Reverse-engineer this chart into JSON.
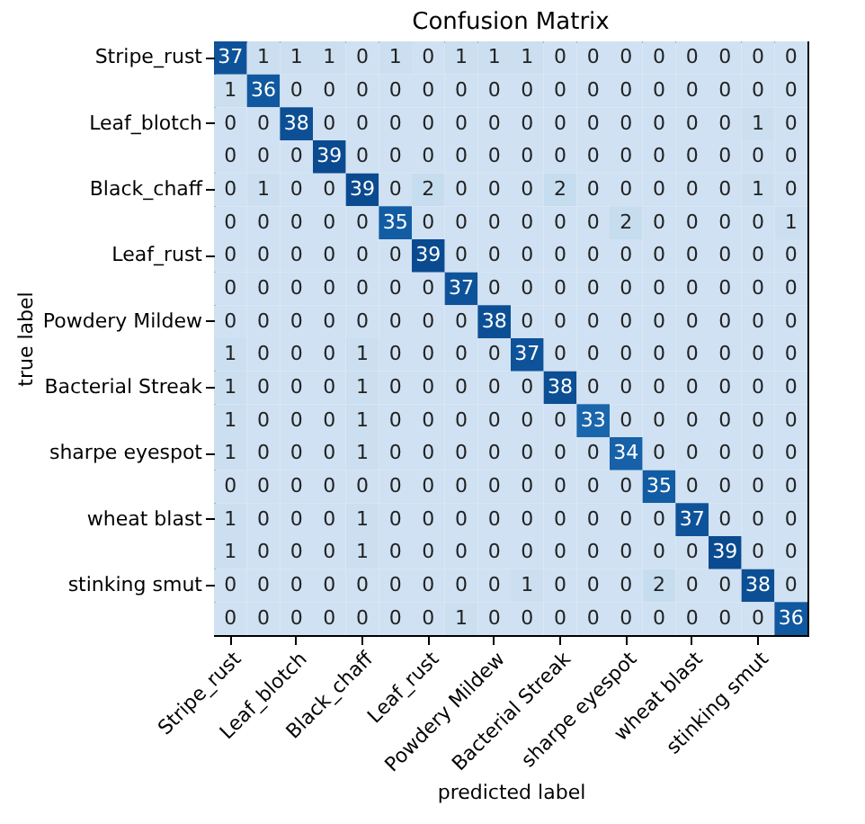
{
  "chart_data": {
    "type": "heatmap",
    "title": "Confusion Matrix",
    "xlabel": "predicted label",
    "ylabel": "true label",
    "categories": [
      "Stripe_rust",
      null,
      "Leaf_blotch",
      null,
      "Black_chaff",
      null,
      "Leaf_rust",
      null,
      "Powdery Mildew",
      null,
      "Bacterial Streak",
      null,
      "sharpe eyespot",
      null,
      "wheat blast",
      null,
      "stinking smut",
      null
    ],
    "y_categories": [
      "Stripe_rust",
      null,
      "Leaf_blotch",
      null,
      "Black_chaff",
      null,
      "Leaf_rust",
      null,
      "Powdery Mildew",
      null,
      "Bacterial Streak",
      null,
      "sharpe eyespot",
      null,
      "wheat blast",
      null,
      "stinking smut",
      null
    ],
    "cells": [
      [
        37,
        1,
        1,
        1,
        0,
        1,
        0,
        1,
        1,
        1,
        0,
        0,
        0,
        0,
        0,
        0,
        0,
        0
      ],
      [
        1,
        36,
        0,
        0,
        0,
        0,
        0,
        0,
        0,
        0,
        0,
        0,
        0,
        0,
        0,
        0,
        0,
        0
      ],
      [
        0,
        0,
        38,
        0,
        0,
        0,
        0,
        0,
        0,
        0,
        0,
        0,
        0,
        0,
        0,
        0,
        1,
        0
      ],
      [
        0,
        0,
        0,
        39,
        0,
        0,
        0,
        0,
        0,
        0,
        0,
        0,
        0,
        0,
        0,
        0,
        0,
        0
      ],
      [
        0,
        1,
        0,
        0,
        39,
        0,
        2,
        0,
        0,
        0,
        2,
        0,
        0,
        0,
        0,
        0,
        1,
        0
      ],
      [
        0,
        0,
        0,
        0,
        0,
        35,
        0,
        0,
        0,
        0,
        0,
        0,
        2,
        0,
        0,
        0,
        0,
        1
      ],
      [
        0,
        0,
        0,
        0,
        0,
        0,
        39,
        0,
        0,
        0,
        0,
        0,
        0,
        0,
        0,
        0,
        0,
        0
      ],
      [
        0,
        0,
        0,
        0,
        0,
        0,
        0,
        37,
        0,
        0,
        0,
        0,
        0,
        0,
        0,
        0,
        0,
        0
      ],
      [
        0,
        0,
        0,
        0,
        0,
        0,
        0,
        0,
        38,
        0,
        0,
        0,
        0,
        0,
        0,
        0,
        0,
        0
      ],
      [
        1,
        0,
        0,
        0,
        1,
        0,
        0,
        0,
        0,
        37,
        0,
        0,
        0,
        0,
        0,
        0,
        0,
        0
      ],
      [
        1,
        0,
        0,
        0,
        1,
        0,
        0,
        0,
        0,
        0,
        38,
        0,
        0,
        0,
        0,
        0,
        0,
        0
      ],
      [
        1,
        0,
        0,
        0,
        1,
        0,
        0,
        0,
        0,
        0,
        0,
        33,
        0,
        0,
        0,
        0,
        0,
        0
      ],
      [
        1,
        0,
        0,
        0,
        1,
        0,
        0,
        0,
        0,
        0,
        0,
        0,
        34,
        0,
        0,
        0,
        0,
        0
      ],
      [
        0,
        0,
        0,
        0,
        0,
        0,
        0,
        0,
        0,
        0,
        0,
        0,
        0,
        35,
        0,
        0,
        0,
        0
      ],
      [
        1,
        0,
        0,
        0,
        1,
        0,
        0,
        0,
        0,
        0,
        0,
        0,
        0,
        0,
        37,
        0,
        0,
        0
      ],
      [
        1,
        0,
        0,
        0,
        1,
        0,
        0,
        0,
        0,
        0,
        0,
        0,
        0,
        0,
        0,
        39,
        0,
        0
      ],
      [
        0,
        0,
        0,
        0,
        0,
        0,
        0,
        0,
        0,
        1,
        0,
        0,
        0,
        2,
        0,
        0,
        38,
        0
      ],
      [
        0,
        0,
        0,
        0,
        0,
        0,
        0,
        1,
        0,
        0,
        0,
        0,
        0,
        0,
        0,
        0,
        0,
        36
      ]
    ],
    "data_labels": true
  }
}
